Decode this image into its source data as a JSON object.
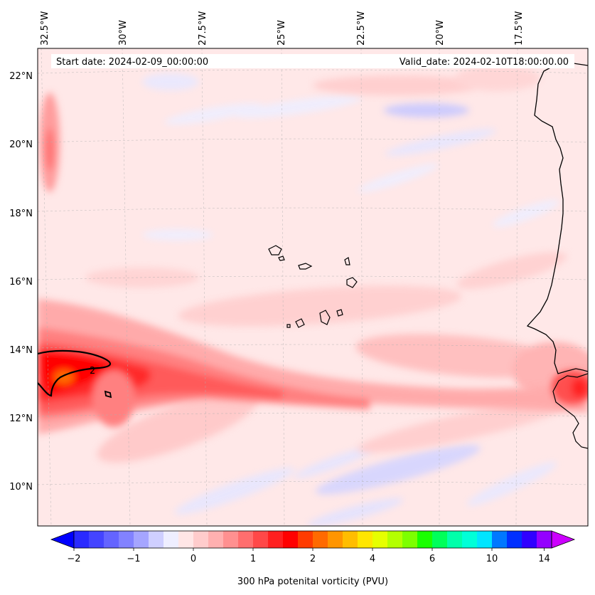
{
  "map": {
    "start_date": "Start date: 2024-02-09_00:00:00",
    "valid_date": "Valid_date: 2024-02-10T18:00:00.00",
    "lon_labels": [
      "32.5°W",
      "30°W",
      "27.5°W",
      "25°W",
      "22.5°W",
      "20°W",
      "17.5°W"
    ],
    "lat_labels": [
      "22°N",
      "20°N",
      "18°N",
      "16°N",
      "14°N",
      "12°N",
      "10°N"
    ],
    "contour_label": "2"
  },
  "colorbar": {
    "label": "300 hPa potenital vorticity (PVU)",
    "tick_labels": [
      "−2",
      "−1",
      "0",
      "1",
      "2",
      "4",
      "6",
      "10",
      "14"
    ],
    "colors": [
      "#2a2aff",
      "#4444ff",
      "#6464ff",
      "#8282ff",
      "#a5a5ff",
      "#cfcfff",
      "#eeeeff",
      "#ffe6e6",
      "#ffcccc",
      "#ffb0b0",
      "#ff9090",
      "#ff6e6e",
      "#ff4848",
      "#ff2020",
      "#ff0000",
      "#ff3b00",
      "#ff6a00",
      "#ff9500",
      "#ffbd00",
      "#ffe600",
      "#e6ff00",
      "#b4ff00",
      "#7dff00",
      "#1aff00",
      "#00ff5a",
      "#00ffaa",
      "#00ffd8",
      "#00e5ff",
      "#0078ff",
      "#0030ff",
      "#3000ff",
      "#9400ff"
    ],
    "extend_low_color": "#0000ff",
    "extend_high_color": "#cc00ff"
  },
  "chart_data": {
    "type": "contour_map",
    "variable": "300 hPa potential vorticity",
    "units": "PVU",
    "lon_range": [
      -33.0,
      -15.5
    ],
    "lat_range": [
      9.0,
      22.8
    ],
    "color_scale_ticks": [
      -2,
      -1,
      0,
      1,
      2,
      4,
      6,
      10,
      14
    ],
    "highlighted_contour": 2
  }
}
